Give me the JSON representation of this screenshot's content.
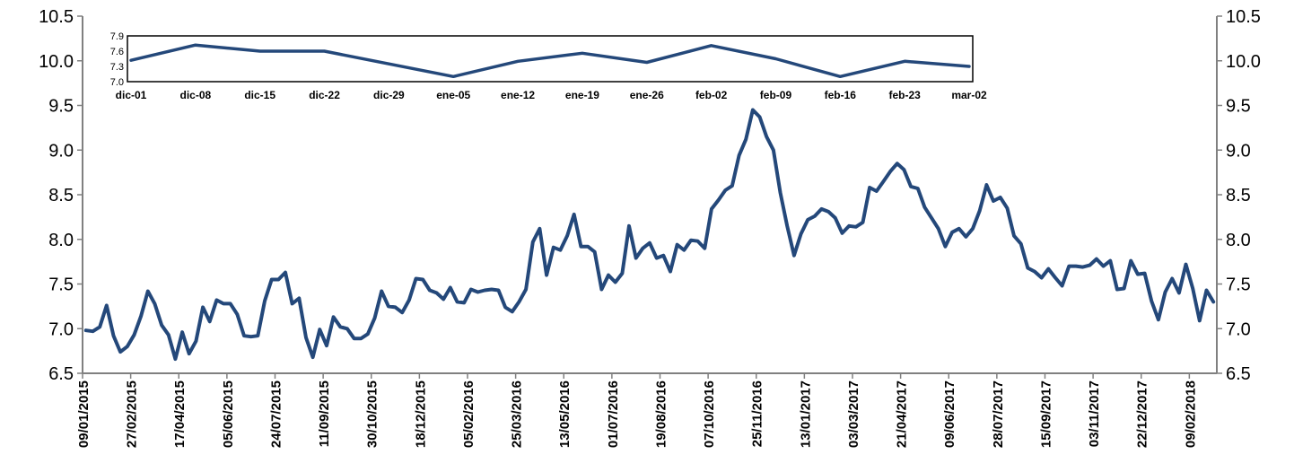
{
  "colors": {
    "series": "#24487A",
    "axis": "#808080",
    "inset_frame": "#000000"
  },
  "chart_data": [
    {
      "type": "line",
      "title": "",
      "xlabel": "",
      "ylabel": "",
      "ylim": [
        6.5,
        10.5
      ],
      "grid": false,
      "legend": "none",
      "y_ticks": [
        "6.5",
        "7.0",
        "7.5",
        "8.0",
        "8.5",
        "9.0",
        "9.5",
        "10.0",
        "10.5"
      ],
      "y_ticks_right": [
        "6.5",
        "7.0",
        "7.5",
        "8.0",
        "8.5",
        "9.0",
        "9.5",
        "10.0",
        "10.5"
      ],
      "x_tick_labels": [
        "09/01/2015",
        "27/02/2015",
        "17/04/2015",
        "05/06/2015",
        "24/07/2015",
        "11/09/2015",
        "30/10/2015",
        "18/12/2015",
        "05/02/2016",
        "25/03/2016",
        "13/05/2016",
        "01/07/2016",
        "19/08/2016",
        "07/10/2016",
        "25/11/2016",
        "13/01/2017",
        "03/03/2017",
        "21/04/2017",
        "09/06/2017",
        "28/07/2017",
        "15/09/2017",
        "03/11/2017",
        "22/12/2017",
        "09/02/2018"
      ],
      "series": [
        {
          "values": [
            6.98,
            6.97,
            7.02,
            7.26,
            6.92,
            6.74,
            6.8,
            6.93,
            7.14,
            7.42,
            7.28,
            7.04,
            6.93,
            6.66,
            6.96,
            6.72,
            6.86,
            7.24,
            7.08,
            7.32,
            7.28,
            7.28,
            7.16,
            6.92,
            6.91,
            6.92,
            7.31,
            7.55,
            7.55,
            7.63,
            7.28,
            7.34,
            6.9,
            6.68,
            6.99,
            6.81,
            7.13,
            7.02,
            7.0,
            6.89,
            6.89,
            6.94,
            7.12,
            7.42,
            7.25,
            7.24,
            7.18,
            7.32,
            7.56,
            7.55,
            7.43,
            7.4,
            7.33,
            7.46,
            7.3,
            7.29,
            7.44,
            7.41,
            7.43,
            7.44,
            7.43,
            7.24,
            7.19,
            7.3,
            7.44,
            7.97,
            8.12,
            7.6,
            7.91,
            7.88,
            8.04,
            8.28,
            7.92,
            7.92,
            7.86,
            7.44,
            7.6,
            7.52,
            7.62,
            8.15,
            7.79,
            7.9,
            7.96,
            7.79,
            7.82,
            7.64,
            7.94,
            7.88,
            7.99,
            7.98,
            7.9,
            8.34,
            8.44,
            8.55,
            8.6,
            8.94,
            9.12,
            9.45,
            9.37,
            9.15,
            9.0,
            8.52,
            8.15,
            7.82,
            8.06,
            8.22,
            8.26,
            8.34,
            8.31,
            8.24,
            8.07,
            8.15,
            8.14,
            8.19,
            8.58,
            8.54,
            8.65,
            8.76,
            8.85,
            8.78,
            8.59,
            8.57,
            8.36,
            8.24,
            8.12,
            7.92,
            8.08,
            8.12,
            8.03,
            8.12,
            8.32,
            8.61,
            8.43,
            8.47,
            8.35,
            8.04,
            7.95,
            7.68,
            7.64,
            7.57,
            7.67,
            7.57,
            7.48,
            7.7,
            7.7,
            7.69,
            7.71,
            7.78,
            7.7,
            7.76,
            7.44,
            7.45,
            7.76,
            7.61,
            7.62,
            7.31,
            7.1,
            7.41,
            7.56,
            7.4,
            7.72,
            7.45,
            7.09,
            7.43,
            7.3
          ]
        }
      ]
    },
    {
      "type": "line",
      "title": "",
      "xlabel": "",
      "ylabel": "",
      "ylim": [
        7.0,
        7.9
      ],
      "grid": false,
      "legend": "none",
      "y_ticks": [
        "7.0",
        "7.3",
        "7.6",
        "7.9"
      ],
      "categories": [
        "dic-01",
        "dic-08",
        "dic-15",
        "dic-22",
        "dic-29",
        "ene-05",
        "ene-12",
        "ene-19",
        "ene-26",
        "feb-02",
        "feb-09",
        "feb-16",
        "feb-23",
        "mar-02"
      ],
      "series": [
        {
          "values": [
            7.42,
            7.72,
            7.6,
            7.6,
            7.35,
            7.1,
            7.4,
            7.56,
            7.38,
            7.71,
            7.45,
            7.1,
            7.4,
            7.3
          ]
        }
      ]
    }
  ]
}
